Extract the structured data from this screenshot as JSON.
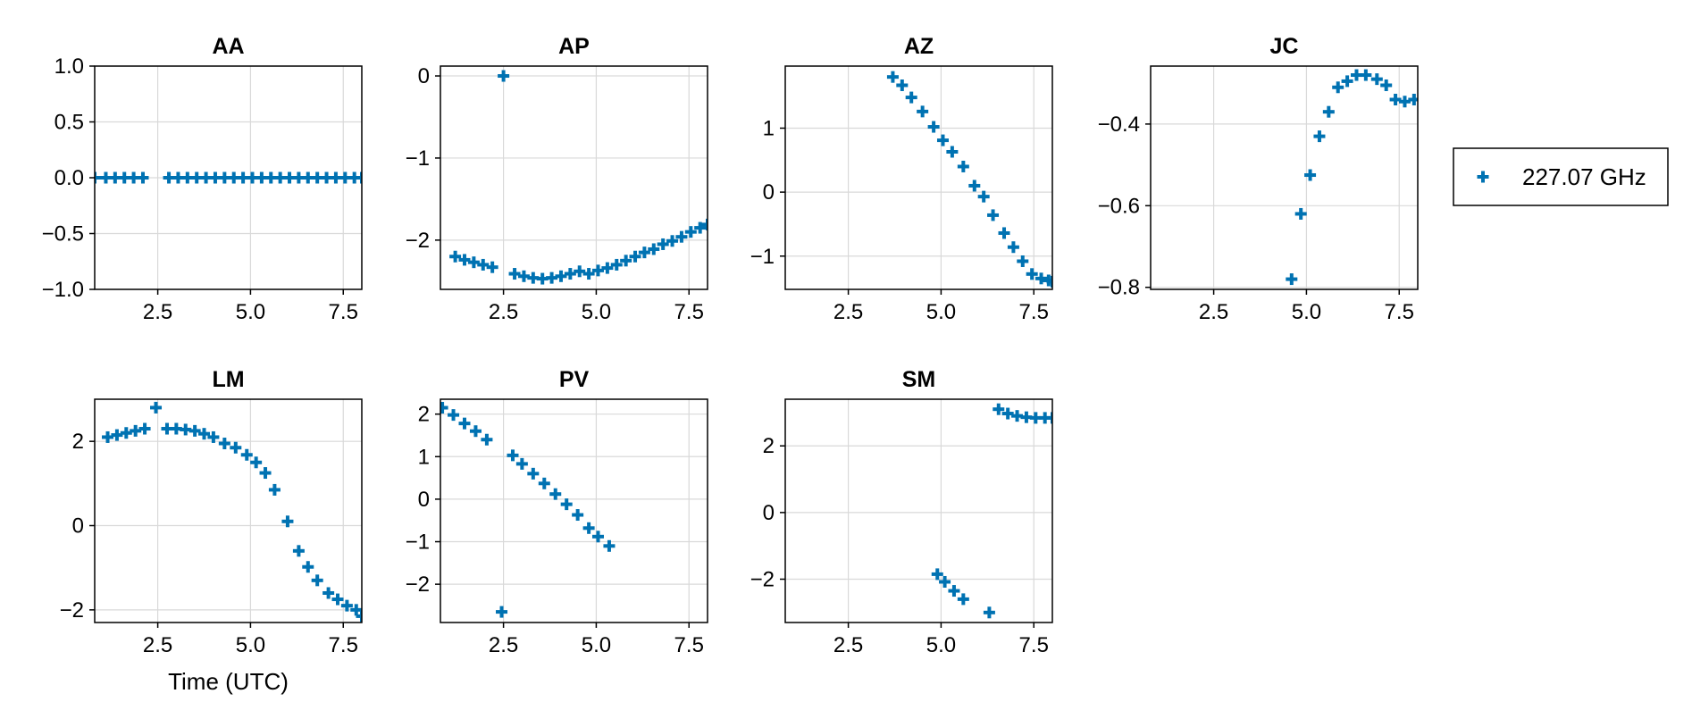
{
  "legend": {
    "label": "227.07 GHz",
    "marker": "plus",
    "placement": "right"
  },
  "colors": {
    "series": "#0072b2",
    "grid": "#d9d9d9",
    "frame": "#000000"
  },
  "chart_data": [
    {
      "type": "scatter",
      "title": "AA",
      "xlabel": "",
      "ylabel": "",
      "xlim": [
        0.8,
        8.0
      ],
      "ylim": [
        -1.0,
        1.0
      ],
      "xticks": [
        "2.5",
        "5.0",
        "7.5"
      ],
      "xtick_values": [
        2.5,
        5.0,
        7.5
      ],
      "yticks": [
        "1.0",
        "0.5",
        "0.0",
        "−0.5",
        "−1.0"
      ],
      "ytick_values": [
        1.0,
        0.5,
        0.0,
        -0.5,
        -1.0
      ],
      "grid": true,
      "series": [
        {
          "name": "227.07 GHz",
          "x": [
            0.8,
            1.1,
            1.35,
            1.6,
            1.85,
            2.1,
            2.8,
            3.05,
            3.3,
            3.55,
            3.8,
            4.05,
            4.3,
            4.55,
            4.8,
            5.05,
            5.3,
            5.55,
            5.8,
            6.05,
            6.3,
            6.55,
            6.8,
            7.05,
            7.3,
            7.55,
            7.8,
            8.0
          ],
          "y": [
            0,
            0,
            0,
            0,
            0,
            0,
            0,
            0,
            0,
            0,
            0,
            0,
            0,
            0,
            0,
            0,
            0,
            0,
            0,
            0,
            0,
            0,
            0,
            0,
            0,
            0,
            0,
            0
          ]
        }
      ]
    },
    {
      "type": "scatter",
      "title": "AP",
      "xlabel": "",
      "ylabel": "",
      "xlim": [
        0.8,
        8.0
      ],
      "ylim": [
        -2.6,
        0.12
      ],
      "xticks": [
        "2.5",
        "5.0",
        "7.5"
      ],
      "xtick_values": [
        2.5,
        5.0,
        7.5
      ],
      "yticks": [
        "0",
        "−1",
        "−2"
      ],
      "ytick_values": [
        0,
        -1,
        -2
      ],
      "grid": true,
      "series": [
        {
          "name": "227.07 GHz",
          "x": [
            2.5,
            1.2,
            1.45,
            1.7,
            1.95,
            2.2,
            2.8,
            3.05,
            3.3,
            3.55,
            3.8,
            4.05,
            4.3,
            4.55,
            4.8,
            5.05,
            5.3,
            5.55,
            5.8,
            6.05,
            6.3,
            6.55,
            6.8,
            7.05,
            7.3,
            7.55,
            7.8,
            8.0
          ],
          "y": [
            0,
            -2.2,
            -2.24,
            -2.27,
            -2.3,
            -2.33,
            -2.41,
            -2.44,
            -2.46,
            -2.47,
            -2.46,
            -2.44,
            -2.41,
            -2.38,
            -2.41,
            -2.37,
            -2.34,
            -2.3,
            -2.25,
            -2.2,
            -2.15,
            -2.11,
            -2.05,
            -2.01,
            -1.96,
            -1.9,
            -1.85,
            -1.81
          ]
        }
      ]
    },
    {
      "type": "scatter",
      "title": "AZ",
      "xlabel": "",
      "ylabel": "",
      "xlim": [
        0.8,
        8.0
      ],
      "ylim": [
        -1.52,
        1.97
      ],
      "xticks": [
        "2.5",
        "5.0",
        "7.5"
      ],
      "xtick_values": [
        2.5,
        5.0,
        7.5
      ],
      "yticks": [
        "1",
        "0",
        "−1"
      ],
      "ytick_values": [
        1,
        0,
        -1
      ],
      "grid": true,
      "series": [
        {
          "name": "227.07 GHz",
          "x": [
            3.7,
            3.95,
            4.2,
            4.5,
            4.8,
            5.05,
            5.3,
            5.6,
            5.9,
            6.15,
            6.4,
            6.7,
            6.95,
            7.2,
            7.45,
            7.7,
            7.9,
            8.0
          ],
          "y": [
            1.8,
            1.67,
            1.48,
            1.26,
            1.02,
            0.81,
            0.63,
            0.4,
            0.1,
            -0.07,
            -0.36,
            -0.64,
            -0.86,
            -1.08,
            -1.28,
            -1.35,
            -1.38,
            -1.4
          ]
        }
      ]
    },
    {
      "type": "scatter",
      "title": "JC",
      "xlabel": "",
      "ylabel": "",
      "xlim": [
        0.8,
        8.0
      ],
      "ylim": [
        -0.805,
        -0.258
      ],
      "xticks": [
        "2.5",
        "5.0",
        "7.5"
      ],
      "xtick_values": [
        2.5,
        5.0,
        7.5
      ],
      "yticks": [
        "−0.4",
        "−0.6",
        "−0.8"
      ],
      "ytick_values": [
        -0.4,
        -0.6,
        -0.8
      ],
      "grid": true,
      "series": [
        {
          "name": "227.07 GHz",
          "x": [
            4.6,
            4.85,
            5.1,
            5.35,
            5.6,
            5.85,
            6.1,
            6.35,
            6.6,
            6.9,
            7.15,
            7.4,
            7.65,
            7.9
          ],
          "y": [
            -0.78,
            -0.62,
            -0.525,
            -0.43,
            -0.37,
            -0.31,
            -0.295,
            -0.28,
            -0.28,
            -0.29,
            -0.305,
            -0.34,
            -0.345,
            -0.34
          ]
        }
      ]
    },
    {
      "type": "scatter",
      "title": "LM",
      "xlabel": "Time (UTC)",
      "ylabel": "",
      "xlim": [
        0.8,
        8.0
      ],
      "ylim": [
        -2.3,
        3.0
      ],
      "xticks": [
        "2.5",
        "5.0",
        "7.5"
      ],
      "xtick_values": [
        2.5,
        5.0,
        7.5
      ],
      "yticks": [
        "2",
        "0",
        "−2"
      ],
      "ytick_values": [
        2,
        0,
        -2
      ],
      "grid": true,
      "series": [
        {
          "name": "227.07 GHz",
          "x": [
            1.15,
            1.4,
            1.65,
            1.9,
            2.15,
            2.45,
            2.75,
            3.0,
            3.25,
            3.5,
            3.75,
            4.0,
            4.3,
            4.6,
            4.9,
            5.15,
            5.4,
            5.65,
            6.0,
            6.3,
            6.55,
            6.8,
            7.1,
            7.35,
            7.6,
            7.85,
            8.0
          ],
          "y": [
            2.1,
            2.15,
            2.2,
            2.25,
            2.3,
            2.8,
            2.3,
            2.3,
            2.28,
            2.25,
            2.18,
            2.1,
            1.95,
            1.85,
            1.68,
            1.5,
            1.25,
            0.85,
            0.1,
            -0.6,
            -0.98,
            -1.3,
            -1.6,
            -1.75,
            -1.9,
            -2.0,
            -2.15
          ]
        }
      ]
    },
    {
      "type": "scatter",
      "title": "PV",
      "xlabel": "",
      "ylabel": "",
      "xlim": [
        0.8,
        8.0
      ],
      "ylim": [
        -2.9,
        2.35
      ],
      "xticks": [
        "2.5",
        "5.0",
        "7.5"
      ],
      "xtick_values": [
        2.5,
        5.0,
        7.5
      ],
      "yticks": [
        "2",
        "1",
        "0",
        "−1",
        "−2"
      ],
      "ytick_values": [
        2,
        1,
        0,
        -1,
        -2
      ],
      "grid": true,
      "series": [
        {
          "name": "227.07 GHz",
          "x": [
            0.85,
            1.15,
            1.45,
            1.75,
            2.05,
            2.45,
            2.75,
            3.0,
            3.3,
            3.6,
            3.9,
            4.2,
            4.5,
            4.8,
            5.05,
            5.35
          ],
          "y": [
            2.15,
            1.98,
            1.78,
            1.6,
            1.4,
            -2.65,
            1.03,
            0.83,
            0.6,
            0.37,
            0.12,
            -0.12,
            -0.37,
            -0.68,
            -0.88,
            -1.1
          ]
        }
      ]
    },
    {
      "type": "scatter",
      "title": "SM",
      "xlabel": "",
      "ylabel": "",
      "xlim": [
        0.8,
        8.0
      ],
      "ylim": [
        -3.3,
        3.4
      ],
      "xticks": [
        "2.5",
        "5.0",
        "7.5"
      ],
      "xtick_values": [
        2.5,
        5.0,
        7.5
      ],
      "yticks": [
        "2",
        "0",
        "−2"
      ],
      "ytick_values": [
        2,
        0,
        -2
      ],
      "grid": true,
      "series": [
        {
          "name": "227.07 GHz",
          "x": [
            4.9,
            5.1,
            5.35,
            5.6,
            6.3,
            6.55,
            6.8,
            7.05,
            7.3,
            7.55,
            7.8,
            8.0
          ],
          "y": [
            -1.85,
            -2.08,
            -2.35,
            -2.6,
            -3.0,
            3.1,
            2.97,
            2.9,
            2.86,
            2.84,
            2.84,
            2.84
          ]
        }
      ]
    }
  ]
}
